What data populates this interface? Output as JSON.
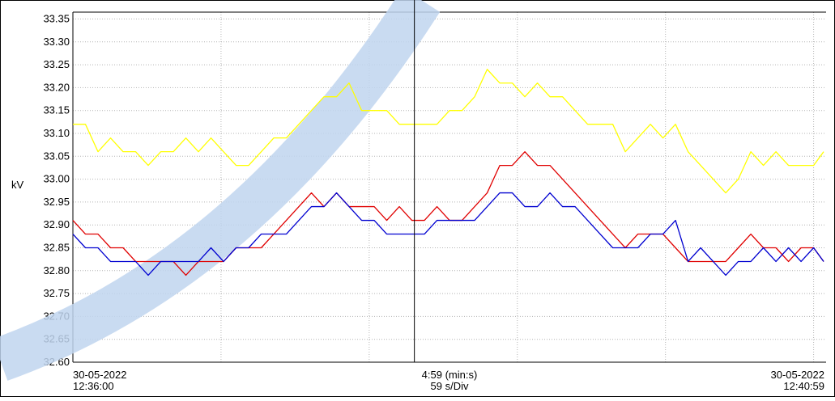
{
  "chart_data": {
    "type": "line",
    "y_label": "kV",
    "x": [
      0,
      5,
      10,
      15,
      20,
      25,
      30,
      35,
      40,
      45,
      50,
      55,
      60,
      65,
      70,
      75,
      80,
      85,
      90,
      95,
      100,
      105,
      110,
      115,
      120,
      125,
      130,
      135,
      140,
      145,
      150,
      155,
      160,
      165,
      170,
      175,
      180,
      185,
      190,
      195,
      200,
      205,
      210,
      215,
      220,
      225,
      230,
      235,
      240,
      245,
      250,
      255,
      260,
      265,
      270,
      275,
      280,
      285,
      290,
      295,
      299
    ],
    "xlim": [
      0,
      299
    ],
    "xticks": [
      59,
      118,
      177,
      236,
      295
    ],
    "cursor_x": 136,
    "x_labels": {
      "start": {
        "date": "30-05-2022",
        "time": "12:36:00"
      },
      "center": {
        "span": "4:59 (min:s)",
        "division": "59 s/Div"
      },
      "end": {
        "date": "30-05-2022",
        "time": "12:40:59"
      }
    },
    "ylim": [
      32.6,
      33.365
    ],
    "yticks": [
      {
        "value": 32.6,
        "label": "32.60"
      },
      {
        "value": 32.65,
        "label": "32.65"
      },
      {
        "value": 32.7,
        "label": "32.70"
      },
      {
        "value": 32.75,
        "label": "32.75"
      },
      {
        "value": 32.8,
        "label": "32.80"
      },
      {
        "value": 32.85,
        "label": "32.85"
      },
      {
        "value": 32.9,
        "label": "32.90"
      },
      {
        "value": 32.95,
        "label": "32.95"
      },
      {
        "value": 33.0,
        "label": "33.00"
      },
      {
        "value": 33.05,
        "label": "33.05"
      },
      {
        "value": 33.1,
        "label": "33.10"
      },
      {
        "value": 33.15,
        "label": "33.15"
      },
      {
        "value": 33.2,
        "label": "33.20"
      },
      {
        "value": 33.25,
        "label": "33.25"
      },
      {
        "value": 33.3,
        "label": "33.30"
      },
      {
        "value": 33.35,
        "label": "33.35"
      }
    ],
    "grid": true,
    "series": [
      {
        "color": "#ffff00",
        "values": [
          33.12,
          33.12,
          33.06,
          33.09,
          33.06,
          33.06,
          33.03,
          33.06,
          33.06,
          33.09,
          33.06,
          33.09,
          33.06,
          33.03,
          33.03,
          33.06,
          33.09,
          33.09,
          33.12,
          33.15,
          33.18,
          33.18,
          33.21,
          33.15,
          33.15,
          33.15,
          33.12,
          33.12,
          33.12,
          33.12,
          33.15,
          33.15,
          33.18,
          33.24,
          33.21,
          33.21,
          33.18,
          33.21,
          33.18,
          33.18,
          33.15,
          33.12,
          33.12,
          33.12,
          33.06,
          33.09,
          33.12,
          33.09,
          33.12,
          33.06,
          33.03,
          33.0,
          32.97,
          33.0,
          33.06,
          33.03,
          33.06,
          33.03,
          33.03,
          33.03,
          33.06
        ]
      },
      {
        "color": "#e00000",
        "values": [
          32.91,
          32.88,
          32.88,
          32.85,
          32.85,
          32.82,
          32.82,
          32.82,
          32.82,
          32.79,
          32.82,
          32.82,
          32.82,
          32.85,
          32.85,
          32.85,
          32.88,
          32.91,
          32.94,
          32.97,
          32.94,
          32.97,
          32.94,
          32.94,
          32.94,
          32.91,
          32.94,
          32.91,
          32.91,
          32.94,
          32.91,
          32.91,
          32.94,
          32.97,
          33.03,
          33.03,
          33.06,
          33.03,
          33.03,
          33.0,
          32.97,
          32.94,
          32.91,
          32.88,
          32.85,
          32.88,
          32.88,
          32.88,
          32.85,
          32.82,
          32.82,
          32.82,
          32.82,
          32.85,
          32.88,
          32.85,
          32.85,
          32.82,
          32.85,
          32.85,
          32.82
        ]
      },
      {
        "color": "#0000d0",
        "values": [
          32.88,
          32.85,
          32.85,
          32.82,
          32.82,
          32.82,
          32.79,
          32.82,
          32.82,
          32.82,
          32.82,
          32.85,
          32.82,
          32.85,
          32.85,
          32.88,
          32.88,
          32.88,
          32.91,
          32.94,
          32.94,
          32.97,
          32.94,
          32.91,
          32.91,
          32.88,
          32.88,
          32.88,
          32.88,
          32.91,
          32.91,
          32.91,
          32.91,
          32.94,
          32.97,
          32.97,
          32.94,
          32.94,
          32.97,
          32.94,
          32.94,
          32.91,
          32.88,
          32.85,
          32.85,
          32.85,
          32.88,
          32.88,
          32.91,
          32.82,
          32.85,
          32.82,
          32.79,
          32.82,
          32.82,
          32.85,
          32.82,
          32.85,
          32.82,
          32.85,
          32.82
        ]
      }
    ]
  }
}
